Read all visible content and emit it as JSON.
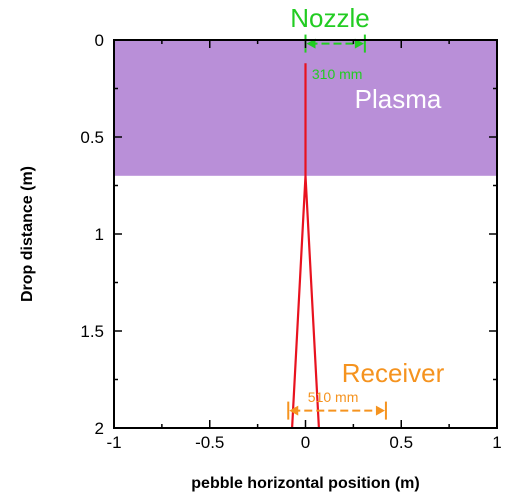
{
  "chart_data": {
    "type": "line",
    "title": "",
    "xlabel": "pebble horizontal position (m)",
    "ylabel": "Drop distance (m)",
    "xlim": [
      -1,
      1
    ],
    "ylim": [
      0,
      2
    ],
    "y_inverted": true,
    "x_ticks": [
      -1,
      -0.5,
      0,
      0.5,
      1
    ],
    "x_tick_labels": [
      "-1",
      "-0.5",
      "0",
      "0.5",
      "1"
    ],
    "y_ticks": [
      0,
      0.5,
      1,
      1.5,
      2
    ],
    "y_tick_labels": [
      "0",
      "0.5",
      "1",
      "1.5",
      "2"
    ],
    "grid": false,
    "regions": [
      {
        "label": "Plasma",
        "y_from": 0,
        "y_to": 0.7,
        "color": "#b98fd8",
        "text_color": "#ffffff"
      }
    ],
    "series": [
      {
        "color": "#e8121f",
        "x": [
          0,
          0,
          -0.07,
          0,
          0.07,
          0
        ],
        "y": [
          0.12,
          0.7,
          2,
          0.7,
          2,
          0.7
        ]
      }
    ],
    "annotations": [
      {
        "label": "Nozzle",
        "color": "#22cc22",
        "dimension_label": "310 mm",
        "span_x": [
          0,
          0.31
        ],
        "y": 0.07
      },
      {
        "label": "Receiver",
        "color": "#f5931f",
        "dimension_label": "510 mm",
        "span_x": [
          -0.09,
          0.42
        ],
        "y": 1.9
      }
    ],
    "colors": {
      "axis": "#000000",
      "trajectory": "#e8121f"
    }
  }
}
